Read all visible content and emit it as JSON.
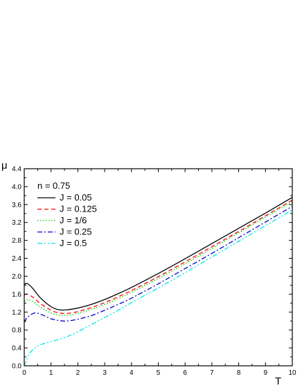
{
  "chart_data": {
    "type": "line",
    "xlabel": "T",
    "ylabel": "μ",
    "xlim": [
      0,
      10
    ],
    "ylim": [
      0,
      4.4
    ],
    "x_ticks": [
      0,
      1,
      2,
      3,
      4,
      5,
      6,
      7,
      8,
      9,
      10
    ],
    "y_ticks": [
      0.0,
      0.4,
      0.8,
      1.2,
      1.6,
      2.0,
      2.4,
      2.8,
      3.2,
      3.6,
      4.0,
      4.4
    ],
    "y_tick_labels": [
      "0.0",
      "0.4",
      "0.8",
      "1.2",
      "1.6",
      "2.0",
      "2.4",
      "2.8",
      "3.2",
      "3.6",
      "4.0",
      "4.4"
    ],
    "grid": false,
    "legend_placement": "top-left",
    "legend_title": "n = 0.75",
    "series": [
      {
        "name": "J = 0.05",
        "color": "#000000",
        "dash": "solid",
        "x": [
          0,
          0.1,
          0.3,
          0.6,
          1.0,
          1.3,
          1.6,
          2.0,
          2.5,
          3,
          3.5,
          4,
          5,
          6,
          7,
          8,
          9,
          10
        ],
        "y": [
          1.81,
          1.84,
          1.74,
          1.52,
          1.32,
          1.25,
          1.25,
          1.29,
          1.37,
          1.48,
          1.61,
          1.75,
          2.06,
          2.39,
          2.73,
          3.07,
          3.41,
          3.76
        ]
      },
      {
        "name": "J = 0.125",
        "color": "#ff0000",
        "dash": "dashed",
        "x": [
          0,
          0.1,
          0.3,
          0.6,
          1.0,
          1.3,
          1.6,
          2.0,
          2.5,
          3,
          3.5,
          4,
          5,
          6,
          7,
          8,
          9,
          10
        ],
        "y": [
          1.58,
          1.6,
          1.54,
          1.39,
          1.24,
          1.18,
          1.17,
          1.21,
          1.3,
          1.41,
          1.54,
          1.68,
          1.99,
          2.32,
          2.66,
          3.0,
          3.35,
          3.7
        ]
      },
      {
        "name": "J = 1/6",
        "color": "#00cc00",
        "dash": "dotted",
        "x": [
          0,
          0.1,
          0.3,
          0.6,
          1.0,
          1.3,
          1.6,
          2.0,
          2.5,
          3,
          3.5,
          4,
          5,
          6,
          7,
          8,
          9,
          10
        ],
        "y": [
          1.44,
          1.47,
          1.44,
          1.31,
          1.18,
          1.13,
          1.13,
          1.17,
          1.26,
          1.37,
          1.5,
          1.64,
          1.95,
          2.28,
          2.62,
          2.97,
          3.32,
          3.67
        ]
      },
      {
        "name": "J = 0.25",
        "color": "#0000cc",
        "dash": "dash-dot",
        "x": [
          0,
          0.1,
          0.3,
          0.45,
          0.7,
          1.0,
          1.3,
          1.6,
          2.0,
          2.5,
          3,
          3.5,
          4,
          5,
          6,
          7,
          8,
          9,
          10
        ],
        "y": [
          0.97,
          1.07,
          1.16,
          1.18,
          1.13,
          1.05,
          1.01,
          1.0,
          1.04,
          1.12,
          1.24,
          1.37,
          1.51,
          1.83,
          2.17,
          2.51,
          2.86,
          3.21,
          3.56
        ]
      },
      {
        "name": "J = 0.5",
        "color": "#00e5e5",
        "dash": "dash-dot-dot",
        "x": [
          0,
          0.1,
          0.2,
          0.4,
          0.6,
          1.0,
          1.5,
          2.0,
          2.5,
          3,
          3.5,
          4,
          5,
          6,
          7,
          8,
          9,
          10
        ],
        "y": [
          0.0,
          0.15,
          0.28,
          0.4,
          0.47,
          0.54,
          0.63,
          0.76,
          0.92,
          1.08,
          1.24,
          1.41,
          1.74,
          2.08,
          2.43,
          2.78,
          3.13,
          3.48
        ]
      }
    ]
  }
}
